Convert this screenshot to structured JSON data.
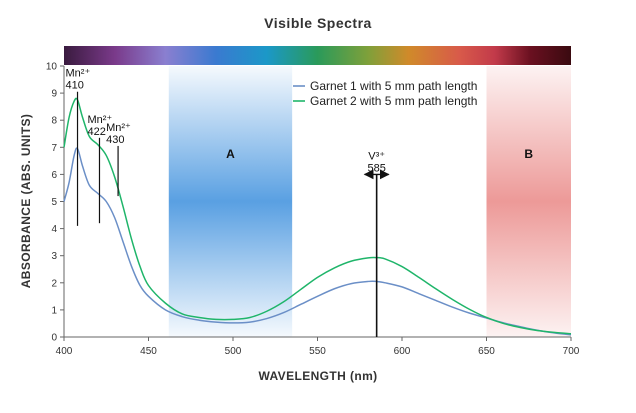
{
  "chart_data": {
    "type": "line",
    "title": "Visible Spectra",
    "xlabel": "WAVELENGTH (nm)",
    "ylabel": "ABSORBANCE (ABS. UNITS)",
    "xlim": [
      400,
      700
    ],
    "ylim": [
      0,
      10
    ],
    "x_ticks": [
      400,
      450,
      500,
      550,
      600,
      650,
      700
    ],
    "y_ticks": [
      0,
      1,
      2,
      3,
      4,
      5,
      6,
      7,
      8,
      9,
      10
    ],
    "grid": false,
    "legend_position": "top-right",
    "series": [
      {
        "name": "Garnet 1 with 5 mm path length",
        "color": "#6b8fc7",
        "x": [
          400,
          403,
          406,
          408,
          411,
          415,
          420,
          425,
          430,
          435,
          440,
          445,
          450,
          460,
          470,
          480,
          490,
          500,
          510,
          520,
          530,
          540,
          550,
          560,
          570,
          580,
          585,
          590,
          600,
          610,
          620,
          630,
          640,
          650,
          660,
          670,
          680,
          690,
          700
        ],
        "y": [
          5.0,
          5.7,
          6.7,
          6.95,
          6.3,
          5.6,
          5.3,
          5.0,
          4.4,
          3.5,
          2.6,
          1.9,
          1.5,
          1.0,
          0.75,
          0.62,
          0.55,
          0.52,
          0.55,
          0.68,
          0.9,
          1.2,
          1.5,
          1.78,
          1.97,
          2.05,
          2.05,
          2.0,
          1.85,
          1.6,
          1.35,
          1.1,
          0.88,
          0.7,
          0.52,
          0.38,
          0.25,
          0.15,
          0.08
        ]
      },
      {
        "name": "Garnet 2 with 5 mm path length",
        "color": "#1fb56a",
        "x": [
          400,
          403,
          406,
          408,
          411,
          415,
          420,
          425,
          430,
          435,
          440,
          445,
          450,
          460,
          470,
          480,
          490,
          500,
          510,
          520,
          530,
          540,
          550,
          560,
          570,
          580,
          585,
          590,
          600,
          610,
          620,
          630,
          640,
          650,
          660,
          670,
          680,
          690,
          700
        ],
        "y": [
          7.0,
          8.1,
          8.7,
          8.75,
          8.1,
          7.4,
          7.1,
          6.7,
          5.9,
          4.8,
          3.6,
          2.6,
          1.9,
          1.25,
          0.85,
          0.72,
          0.65,
          0.65,
          0.72,
          0.95,
          1.3,
          1.75,
          2.2,
          2.55,
          2.8,
          2.92,
          2.93,
          2.88,
          2.6,
          2.2,
          1.78,
          1.38,
          1.02,
          0.72,
          0.5,
          0.35,
          0.24,
          0.17,
          0.12
        ]
      }
    ],
    "regions": [
      {
        "label": "A",
        "x_range": [
          462,
          535
        ],
        "color": "#3c8fdd"
      },
      {
        "label": "B",
        "x_range": [
          650,
          700
        ],
        "color": "#e8807e"
      }
    ],
    "annotations": [
      {
        "ion": "Mn²⁺",
        "wavelength": "410",
        "x": 408,
        "y_top": 9.05,
        "y_bottom": 4.1
      },
      {
        "ion": "Mn²⁺",
        "wavelength": "422",
        "x": 421,
        "y_top": 7.35,
        "y_bottom": 4.2
      },
      {
        "ion": "Mn²⁺",
        "wavelength": "430",
        "x": 432,
        "y_top": 7.05,
        "y_bottom": 5.2
      },
      {
        "ion": "V³⁺",
        "wavelength": "585",
        "x": 585,
        "y_top": 6.0,
        "y_bottom": 0
      }
    ]
  }
}
